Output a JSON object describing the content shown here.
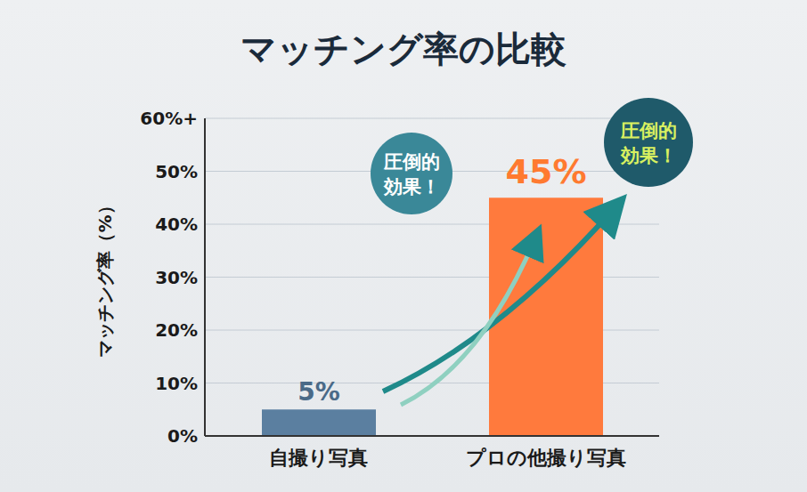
{
  "chart_data": {
    "type": "bar",
    "title": "マッチング率の比較",
    "ylabel": "マッチング率（%）",
    "categories": [
      "自撮り写真",
      "プロの他撮り写真"
    ],
    "values": [
      5,
      45
    ],
    "value_labels": [
      "5%",
      "45%"
    ],
    "colors": [
      "#5b7fa0",
      "#ff7a3d"
    ],
    "ylim": [
      0,
      60
    ],
    "yticks": [
      {
        "value": 0,
        "label": "0%"
      },
      {
        "value": 10,
        "label": "10%"
      },
      {
        "value": 20,
        "label": "20%"
      },
      {
        "value": 30,
        "label": "30%"
      },
      {
        "value": 40,
        "label": "40%"
      },
      {
        "value": 50,
        "label": "50%"
      },
      {
        "value": 60,
        "label": "60%+"
      }
    ],
    "grid": true,
    "data_labels": true,
    "annotations": [
      "圧倒的効果！",
      "圧倒的効果！"
    ]
  }
}
